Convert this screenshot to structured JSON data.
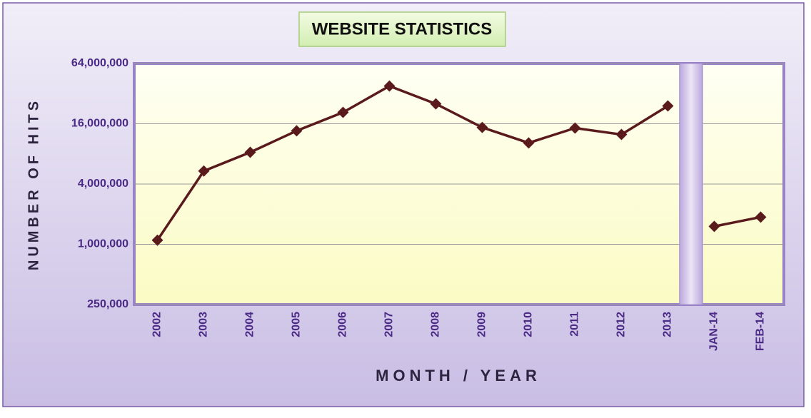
{
  "chart_data": {
    "type": "line",
    "title": "WEBSITE STATISTICS",
    "x_label": "MONTH / YEAR",
    "y_label": "NUMBER OF HITS",
    "categories": [
      "2002",
      "2003",
      "2004",
      "2005",
      "2006",
      "2007",
      "2008",
      "2009",
      "2010",
      "2011",
      "2012",
      "2013",
      null,
      "JAN-14",
      "FEB-14"
    ],
    "series": [
      {
        "name": "Hits",
        "color": "#5a1a1c",
        "values": [
          1100000,
          5400000,
          8300000,
          13600000,
          20800000,
          38100000,
          25300000,
          14700000,
          10300000,
          14500000,
          12500000,
          24100000,
          null,
          1510000,
          1870000
        ]
      }
    ],
    "log_scale": true,
    "ylim": [
      250000,
      64000000
    ],
    "yticks": [
      {
        "value": 250000,
        "label": "250,000"
      },
      {
        "value": 1000000,
        "label": "1,000,000"
      },
      {
        "value": 4000000,
        "label": "4,000,000"
      },
      {
        "value": 16000000,
        "label": "16,000,000"
      },
      {
        "value": 64000000,
        "label": "64,000,000"
      }
    ],
    "grid": true
  }
}
